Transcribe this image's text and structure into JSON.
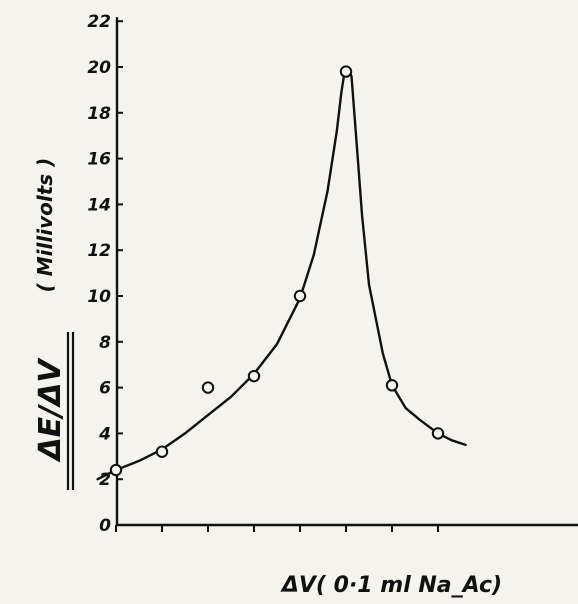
{
  "chart_data": {
    "type": "scatter",
    "title": "",
    "xlabel": "ΔV( 0·1  ml  Na_Ac)",
    "ylabel_main": "ΔE/ΔV",
    "ylabel_unit": "( Millivolts )",
    "ylim": [
      0,
      22
    ],
    "yticks": [
      0,
      2,
      4,
      6,
      8,
      10,
      12,
      14,
      16,
      18,
      20,
      22
    ],
    "y_major_labels": [
      "0",
      "2",
      "4",
      "6",
      "8",
      "10",
      "12",
      "14",
      "16",
      "18",
      "20",
      "22"
    ],
    "x_tick_count": 8,
    "grid": false,
    "legend": "none",
    "series": [
      {
        "kind": "points",
        "marker": "open-circle",
        "x": [
          1,
          2,
          3,
          4,
          5,
          6,
          7,
          8
        ],
        "y": [
          2.4,
          3.2,
          6.0,
          6.5,
          10.0,
          19.8,
          6.1,
          4.0
        ]
      },
      {
        "kind": "fitted-curve",
        "x": [
          0.6,
          1.0,
          1.5,
          2.0,
          2.5,
          3.0,
          3.5,
          4.0,
          4.5,
          5.0,
          5.3,
          5.6,
          5.8,
          5.9,
          5.97,
          6.05,
          6.12,
          6.2,
          6.35,
          6.5,
          6.8,
          7.0,
          7.3,
          7.6,
          8.0,
          8.3,
          8.6
        ],
        "y": [
          2.0,
          2.4,
          2.8,
          3.3,
          4.0,
          4.8,
          5.6,
          6.6,
          7.9,
          9.9,
          11.8,
          14.6,
          17.2,
          18.9,
          19.8,
          19.9,
          19.6,
          17.5,
          13.5,
          10.5,
          7.5,
          6.1,
          5.1,
          4.6,
          4.0,
          3.7,
          3.5
        ]
      }
    ],
    "style": {
      "ink": "#111111",
      "paper": "#f4f3ee"
    }
  }
}
